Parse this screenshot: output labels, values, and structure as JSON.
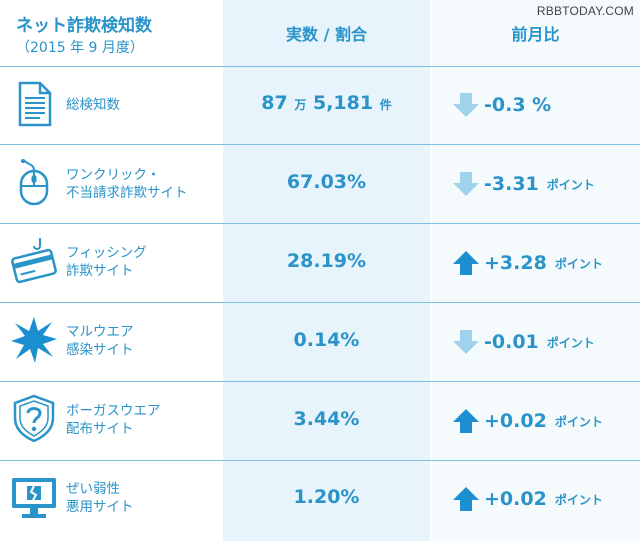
{
  "watermark": "RBBTODAY.COM",
  "header": {
    "title": "ネット詐欺検知数",
    "subtitle": "（2015 年 9 月度）",
    "col_value": "実数 / 割合",
    "col_change": "前月比"
  },
  "colors": {
    "accent": "#2a93c9",
    "light_arrow": "#9fd3ec",
    "dark_arrow": "#1c8fd1",
    "band": "#e8f4fb"
  },
  "rows": [
    {
      "icon": "document-icon",
      "label1": "総検知数",
      "label2": "",
      "value_main": "87",
      "value_unit1": "万",
      "value_rest": "5,181",
      "value_unit2": "件",
      "direction": "down",
      "change": "-0.3 %",
      "change_unit": ""
    },
    {
      "icon": "mouse-icon",
      "label1": "ワンクリック・",
      "label2": "不当請求詐欺サイト",
      "value_main": "67.03%",
      "value_unit1": "",
      "value_rest": "",
      "value_unit2": "",
      "direction": "down",
      "change": "-3.31",
      "change_unit": "ポイント"
    },
    {
      "icon": "credit-card-hook-icon",
      "label1": "フィッシング",
      "label2": "詐欺サイト",
      "value_main": "28.19%",
      "value_unit1": "",
      "value_rest": "",
      "value_unit2": "",
      "direction": "up",
      "change": "+3.28",
      "change_unit": "ポイント"
    },
    {
      "icon": "malware-burst-icon",
      "label1": "マルウエア",
      "label2": "感染サイト",
      "value_main": "0.14%",
      "value_unit1": "",
      "value_rest": "",
      "value_unit2": "",
      "direction": "down",
      "change": "-0.01",
      "change_unit": "ポイント"
    },
    {
      "icon": "shield-question-icon",
      "label1": "ボーガスウエア",
      "label2": "配布サイト",
      "value_main": "3.44%",
      "value_unit1": "",
      "value_rest": "",
      "value_unit2": "",
      "direction": "up",
      "change": "+0.02",
      "change_unit": "ポイント"
    },
    {
      "icon": "broken-monitor-icon",
      "label1": "ぜい弱性",
      "label2": "悪用サイト",
      "value_main": "1.20%",
      "value_unit1": "",
      "value_rest": "",
      "value_unit2": "",
      "direction": "up",
      "change": "+0.02",
      "change_unit": "ポイント"
    }
  ]
}
